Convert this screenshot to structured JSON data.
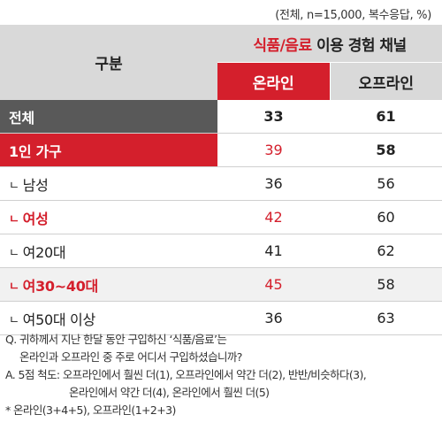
{
  "note_unit": "(전체, n=15,000, 복수응답, %)",
  "header": {
    "category": "구분",
    "group_accent": "식품/음료",
    "group_rest": " 이용 경험 채널",
    "online": "온라인",
    "offline": "오프라인"
  },
  "corner_glyph": "ㄴ",
  "rows": [
    {
      "label": "전체",
      "online": "33",
      "offline": "61"
    },
    {
      "label": "1인 가구",
      "online": "39",
      "offline": "58"
    },
    {
      "label": "남성",
      "online": "36",
      "offline": "56"
    },
    {
      "label": "여성",
      "online": "42",
      "offline": "60"
    },
    {
      "label": "여20대",
      "online": "41",
      "offline": "62"
    },
    {
      "label": "여30~40대",
      "online": "45",
      "offline": "58"
    },
    {
      "label": "여50대 이상",
      "online": "36",
      "offline": "63"
    }
  ],
  "notes": {
    "q1": "Q. 귀하께서 지난 한달 동안 구입하신 ‘식품/음료’는",
    "q2": "온라인과 오프라인 중 주로 어디서 구입하셨습니까?",
    "a1": "A. 5점 척도: 오프라인에서 훨씬 더(1), 오프라인에서 약간 더(2), 반반/비슷하다(3),",
    "a2": "온라인에서 약간 더(4), 온라인에서 훨씬 더(5)",
    "def": "* 온라인(3+4+5), 오프라인(1+2+3)"
  },
  "colors": {
    "accent_red": "#d41f2c",
    "header_gray": "#d9d9d9",
    "total_dark": "#595959"
  }
}
